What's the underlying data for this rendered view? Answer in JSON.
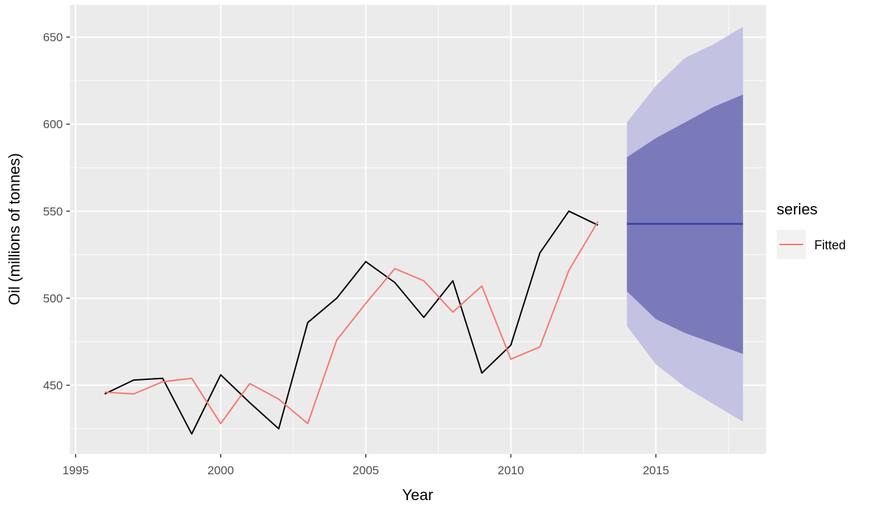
{
  "chart_data": {
    "type": "line",
    "xlabel": "Year",
    "ylabel": "Oil (millions of tonnes)",
    "xlim": [
      1994.8,
      2018.8
    ],
    "ylim": [
      410.5,
      668.5
    ],
    "x_ticks": [
      1995,
      2000,
      2005,
      2010,
      2015
    ],
    "y_ticks": [
      450,
      500,
      550,
      600,
      650
    ],
    "grid": true,
    "legend": {
      "title": "series",
      "position": "right",
      "entries": [
        "Fitted"
      ]
    },
    "series": [
      {
        "role": "observed",
        "color": "#000000",
        "x": [
          1996,
          1997,
          1998,
          1999,
          2000,
          2001,
          2002,
          2003,
          2004,
          2005,
          2006,
          2007,
          2008,
          2009,
          2010,
          2011,
          2012,
          2013
        ],
        "y": [
          445,
          453,
          454,
          422,
          456,
          440,
          425,
          486,
          500,
          521,
          509,
          489,
          510,
          457,
          473,
          526,
          550,
          542
        ]
      },
      {
        "name": "Fitted",
        "color": "#f8766d",
        "x": [
          1996,
          1997,
          1998,
          1999,
          2000,
          2001,
          2002,
          2003,
          2004,
          2005,
          2006,
          2007,
          2008,
          2009,
          2010,
          2011,
          2012,
          2013
        ],
        "y": [
          446,
          445,
          452,
          454,
          428,
          451,
          442,
          428,
          476,
          497,
          517,
          510,
          492,
          507,
          465,
          472,
          516,
          544
        ]
      }
    ],
    "forecast": {
      "color": "#3f48a6",
      "x": [
        2014,
        2015,
        2016,
        2017,
        2018
      ],
      "mean": [
        542.7,
        542.7,
        542.7,
        542.7,
        542.7
      ],
      "lo80": [
        504,
        488,
        480,
        474,
        468
      ],
      "hi80": [
        581,
        592,
        601,
        610,
        617
      ],
      "lo95": [
        484,
        462,
        449,
        439,
        429
      ],
      "hi95": [
        601,
        622,
        638,
        646,
        656
      ],
      "band80_color": "#7a7abb",
      "band95_color": "#c4c2e2"
    },
    "colors": {
      "panel": "#ebebeb",
      "grid": "#ffffff",
      "legend_key": "#f2f2f2"
    }
  }
}
